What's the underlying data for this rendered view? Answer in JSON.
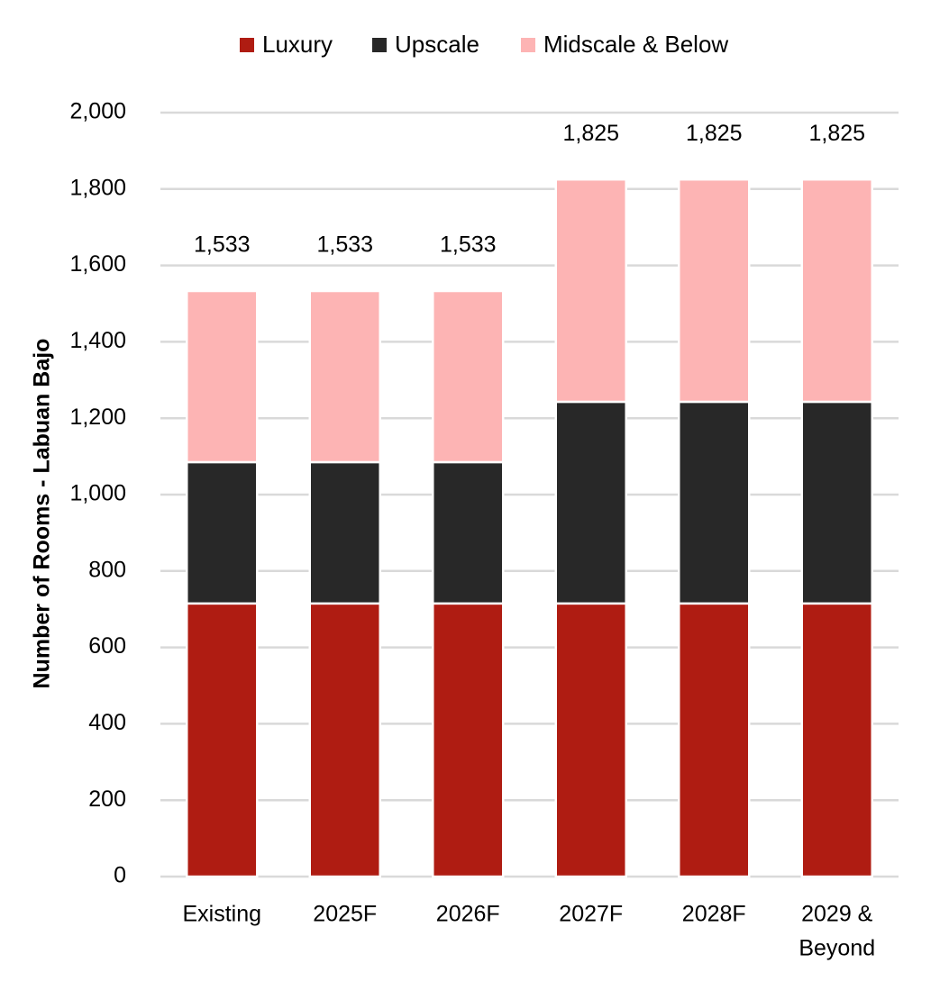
{
  "chart_data": {
    "type": "bar",
    "stacked": true,
    "categories": [
      [
        "Existing"
      ],
      [
        "2025F"
      ],
      [
        "2026F"
      ],
      [
        "2027F"
      ],
      [
        "2028F"
      ],
      [
        "2029 &",
        "Beyond"
      ]
    ],
    "series": [
      {
        "name": "Luxury",
        "color": "#AF1C12",
        "values": [
          715,
          715,
          715,
          715,
          715,
          715
        ]
      },
      {
        "name": "Upscale",
        "color": "#282828",
        "values": [
          370,
          370,
          370,
          528,
          528,
          528
        ]
      },
      {
        "name": "Midscale & Below",
        "color": "#FDB4B4",
        "values": [
          448,
          448,
          448,
          582,
          582,
          582
        ]
      }
    ],
    "totals": [
      "1,533",
      "1,533",
      "1,533",
      "1,825",
      "1,825",
      "1,825"
    ],
    "ylabel": "Number of Rooms - Labuan Bajo",
    "ylim": [
      0,
      2000
    ],
    "yticks": [
      0,
      200,
      400,
      600,
      800,
      1000,
      1200,
      1400,
      1600,
      1800,
      2000
    ],
    "grid": true,
    "legend_position": "top"
  }
}
